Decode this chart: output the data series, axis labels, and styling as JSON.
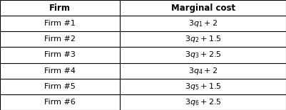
{
  "col_headers": [
    "Firm",
    "Marginal cost"
  ],
  "firm_labels": [
    "Firm #1",
    "Firm #2",
    "Firm #3",
    "Firm #4",
    "Firm #5",
    "Firm #6"
  ],
  "mc_latex": [
    "$3q_1 + 2$",
    "$3q_2 + 1.5$",
    "$3q_3 + 2.5$",
    "$3q_4 + 2$",
    "$3q_5 + 1.5$",
    "$3q_6 + 2.5$"
  ],
  "border_color": "#000000",
  "bg_color": "#ffffff",
  "header_fontsize": 8.5,
  "cell_fontsize": 8.0,
  "col_split": 0.42,
  "fig_width": 4.01,
  "fig_height": 1.55,
  "dpi": 100
}
